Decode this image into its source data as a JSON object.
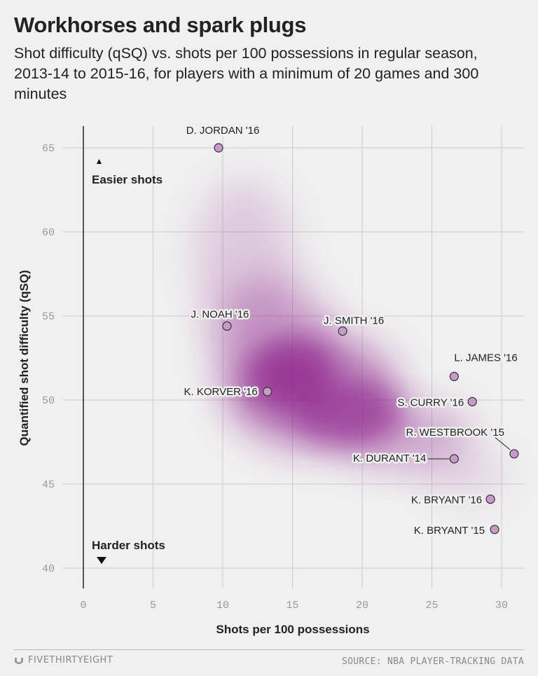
{
  "header": {
    "title": "Workhorses and spark plugs",
    "subtitle": "Shot difficulty (qSQ) vs. shots per 100 possessions in regular season, 2013-14 to 2015-16, for players with a minimum of 20 games and 300 minutes"
  },
  "annotations": {
    "easier": "Easier shots",
    "harder": "Harder shots"
  },
  "footer": {
    "logo_text": "FIVETHIRTYEIGHT",
    "source": "SOURCE: NBA PLAYER-TRACKING DATA"
  },
  "colors": {
    "background": "#f0f0f0",
    "density": "#8b1a89",
    "point_fill": "#c79ac8",
    "point_stroke": "#333333",
    "grid": "#cccccc"
  },
  "chart_data": {
    "type": "scatter",
    "xlabel": "Shots per 100 possessions",
    "ylabel": "Quantified shot difficulty (qSQ)",
    "xlim": [
      0,
      31
    ],
    "ylim": [
      40,
      66
    ],
    "x_ticks": [
      0,
      5,
      10,
      15,
      20,
      25,
      30
    ],
    "y_ticks": [
      40,
      45,
      50,
      55,
      60,
      65
    ],
    "grid": true,
    "points": [
      {
        "label": "D. JORDAN '16",
        "x": 9.7,
        "y": 65.0
      },
      {
        "label": "J. NOAH '16",
        "x": 10.3,
        "y": 54.4
      },
      {
        "label": "J. SMITH '16",
        "x": 18.6,
        "y": 54.1
      },
      {
        "label": "K. KORVER '16",
        "x": 13.2,
        "y": 50.5
      },
      {
        "label": "L. JAMES '16",
        "x": 26.6,
        "y": 51.4
      },
      {
        "label": "S. CURRY '16",
        "x": 27.9,
        "y": 49.9
      },
      {
        "label": "R. WESTBROOK '15",
        "x": 30.9,
        "y": 46.8
      },
      {
        "label": "K. DURANT '14",
        "x": 26.6,
        "y": 46.5
      },
      {
        "label": "K. BRYANT '16",
        "x": 29.2,
        "y": 44.1
      },
      {
        "label": "K. BRYANT '15",
        "x": 29.5,
        "y": 42.3
      }
    ]
  }
}
